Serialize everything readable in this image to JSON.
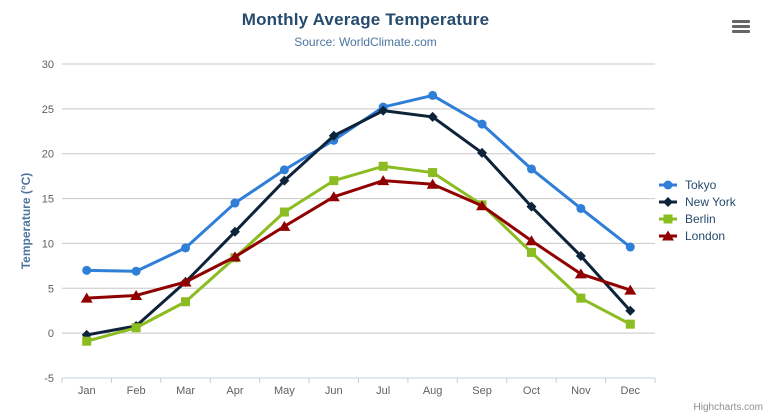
{
  "header": {
    "title": "Monthly Average Temperature",
    "subtitle": "Source: WorldClimate.com"
  },
  "credits": {
    "label": "Highcharts.com"
  },
  "export_menu": {
    "icon": "hamburger-icon"
  },
  "colors": {
    "title": "#274b6d",
    "subtitle": "#4d759e",
    "axis_title": "#4d759e",
    "axis_labels": "#606060",
    "legend_text": "#274b6d",
    "grid_line": "#c8c8c8",
    "axis_line": "#c0d0e0",
    "tick": "#c0d0e0",
    "credits_text": "#909090",
    "menu_icon": "#666666",
    "background": "#ffffff"
  },
  "chart_data": {
    "type": "line",
    "title": "Monthly Average Temperature",
    "subtitle": "Source: WorldClimate.com",
    "xlabel": "",
    "ylabel": "Temperature (°C)",
    "categories": [
      "Jan",
      "Feb",
      "Mar",
      "Apr",
      "May",
      "Jun",
      "Jul",
      "Aug",
      "Sep",
      "Oct",
      "Nov",
      "Dec"
    ],
    "series": [
      {
        "name": "Tokyo",
        "color": "#2f7ed8",
        "marker": "circle",
        "values": [
          7.0,
          6.9,
          9.5,
          14.5,
          18.2,
          21.5,
          25.2,
          26.5,
          23.3,
          18.3,
          13.9,
          9.6
        ]
      },
      {
        "name": "New York",
        "color": "#0d233a",
        "marker": "diamond",
        "values": [
          -0.2,
          0.8,
          5.7,
          11.3,
          17.0,
          22.0,
          24.8,
          24.1,
          20.1,
          14.1,
          8.6,
          2.5
        ]
      },
      {
        "name": "Berlin",
        "color": "#8bbc21",
        "marker": "square",
        "values": [
          -0.9,
          0.6,
          3.5,
          8.4,
          13.5,
          17.0,
          18.6,
          17.9,
          14.3,
          9.0,
          3.9,
          1.0
        ]
      },
      {
        "name": "London",
        "color": "#910000",
        "marker": "triangle",
        "values": [
          3.9,
          4.2,
          5.7,
          8.5,
          11.9,
          15.2,
          17.0,
          16.6,
          14.2,
          10.3,
          6.6,
          4.8
        ]
      }
    ],
    "ylim": [
      -5,
      30
    ],
    "ytick_step": 5,
    "grid": true,
    "legend_position": "right"
  }
}
